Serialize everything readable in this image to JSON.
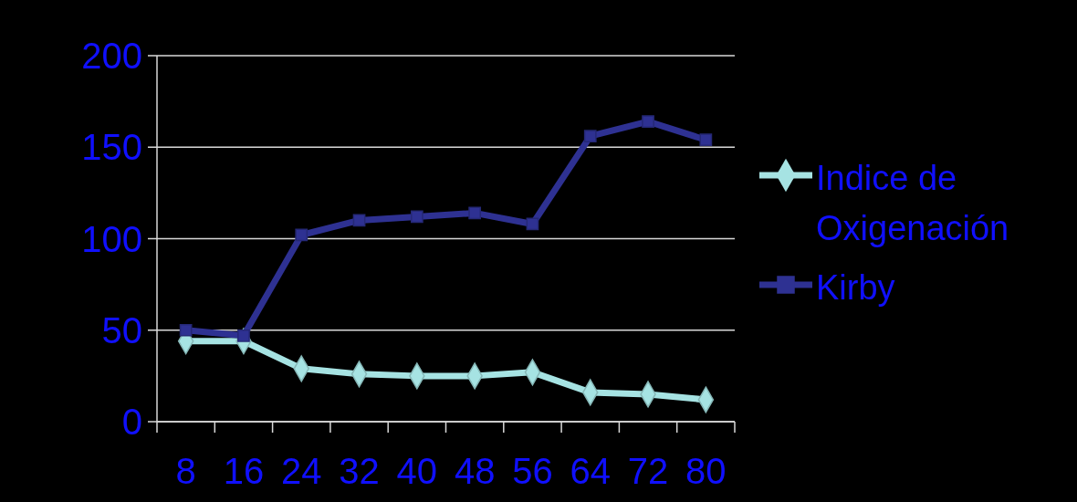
{
  "chart_data": {
    "type": "line",
    "categories": [
      "8",
      "16",
      "24",
      "32",
      "40",
      "48",
      "56",
      "64",
      "72",
      "80"
    ],
    "series": [
      {
        "name": "Indice de Oxigenación",
        "color": "#a6e3e3",
        "marker": "diamond",
        "values": [
          44,
          44,
          29,
          26,
          25,
          25,
          27,
          16,
          15,
          12
        ]
      },
      {
        "name": "Kirby",
        "color": "#2e3192",
        "marker": "square",
        "values": [
          50,
          47,
          102,
          110,
          112,
          114,
          108,
          156,
          164,
          154
        ]
      }
    ],
    "ylim": [
      0,
      200
    ],
    "yticks": [
      0,
      50,
      100,
      150,
      200
    ],
    "grid": "y",
    "legend": "right"
  }
}
